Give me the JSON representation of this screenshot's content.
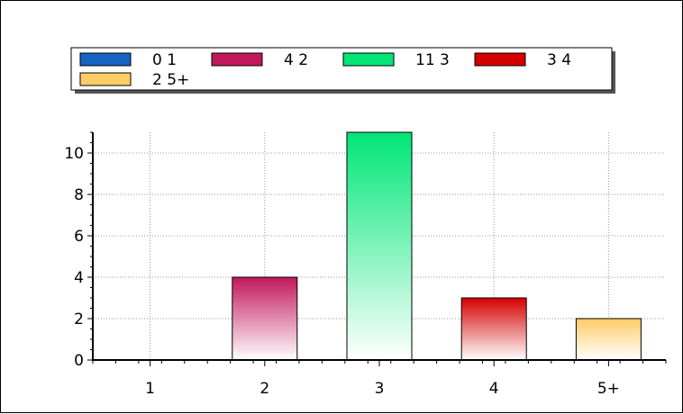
{
  "chart_data": {
    "type": "bar",
    "categories": [
      "1",
      "2",
      "3",
      "4",
      "5+"
    ],
    "values": [
      0,
      4,
      11,
      3,
      2
    ],
    "ylim": [
      0,
      11
    ],
    "yticks": [
      0,
      2,
      4,
      6,
      8,
      10
    ],
    "grid": true,
    "legend_position": "top",
    "colors": [
      "#1565C0",
      "#C2185B",
      "#00E676",
      "#D50000",
      "#FFCC66"
    ],
    "legend": [
      {
        "label": "0 1",
        "color": "#1565C0"
      },
      {
        "label": "4 2",
        "color": "#C2185B"
      },
      {
        "label": "11 3",
        "color": "#00E676"
      },
      {
        "label": "3 4",
        "color": "#D50000"
      },
      {
        "label": "2 5+",
        "color": "#FFCC66"
      }
    ]
  }
}
